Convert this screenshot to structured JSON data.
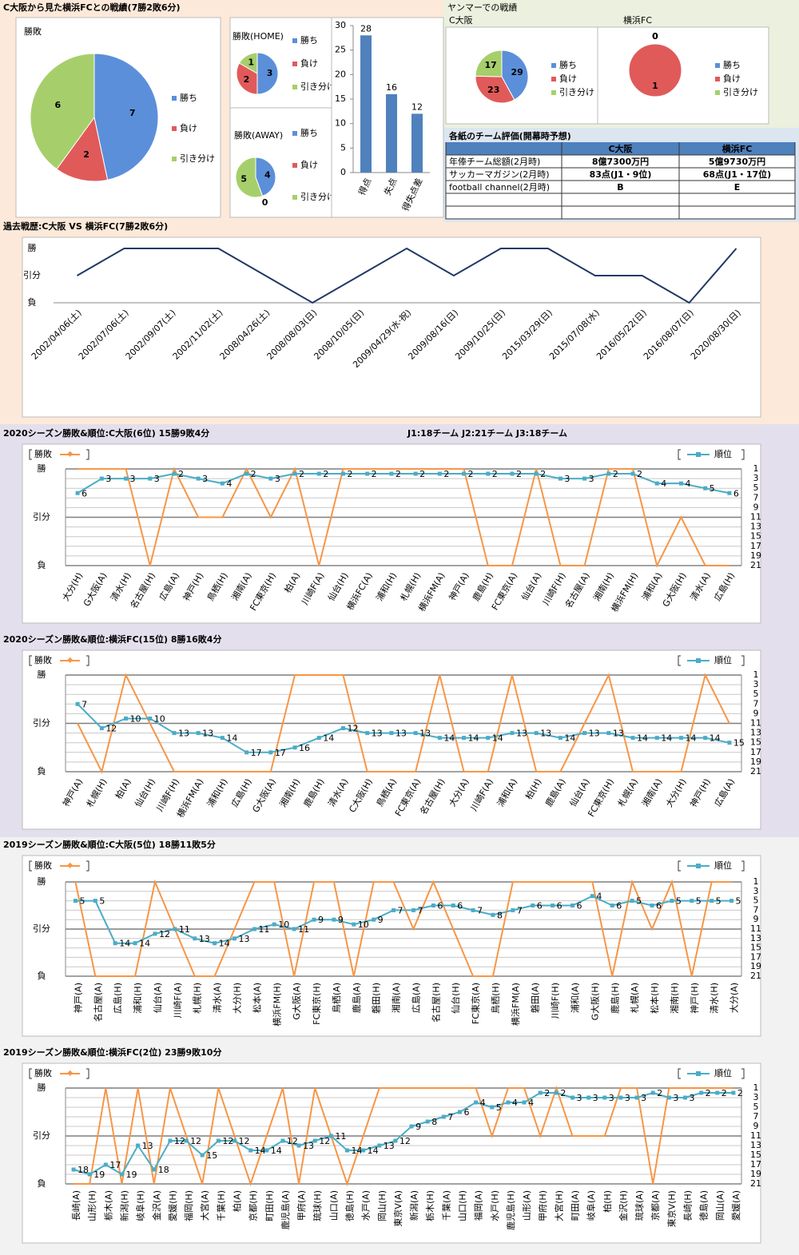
{
  "headings": {
    "overview": "C大阪から見た横浜FCとの戦績(7勝2敗6分)",
    "yanmar": "ヤンマーでの戦績"
  },
  "table": {
    "title": "各紙のチーム評価(開幕時予想)",
    "columns": [
      "C大阪",
      "横浜FC"
    ],
    "rows": [
      {
        "label": "年俸チーム総額(2月時)",
        "values": [
          "8億7300万円",
          "5億9730万円"
        ]
      },
      {
        "label": "サッカーマガジン(2月時)",
        "values": [
          "83点(J1・9位)",
          "68点(J1・17位)"
        ]
      },
      {
        "label": "football channel(2月時)",
        "values": [
          "B",
          "E"
        ]
      }
    ]
  },
  "chart_data": [
    {
      "type": "pie",
      "title": "勝敗",
      "categories": [
        "勝ち",
        "負け",
        "引き分け"
      ],
      "values": [
        7,
        2,
        6
      ],
      "colors": [
        "#5b8fd9",
        "#e05a5a",
        "#a6cf6b"
      ]
    },
    {
      "type": "pie",
      "title": "勝敗(HOME)",
      "categories": [
        "勝ち",
        "負け",
        "引き分け"
      ],
      "values": [
        3,
        2,
        1
      ],
      "colors": [
        "#5b8fd9",
        "#e05a5a",
        "#a6cf6b"
      ]
    },
    {
      "type": "pie",
      "title": "勝敗(AWAY)",
      "categories": [
        "勝ち",
        "負け",
        "引き分け"
      ],
      "values": [
        4,
        0,
        5
      ],
      "colors": [
        "#5b8fd9",
        "#e05a5a",
        "#a6cf6b"
      ]
    },
    {
      "type": "bar",
      "categories": [
        "得点",
        "失点",
        "得失点差"
      ],
      "values": [
        28,
        16,
        12
      ],
      "color": "#4f81bd",
      "ylim": [
        0,
        30
      ],
      "yticks": [
        0,
        5,
        10,
        15,
        20,
        25,
        30
      ]
    },
    {
      "type": "pie",
      "title": "C大阪",
      "categories": [
        "勝ち",
        "負け",
        "引き分け"
      ],
      "values": [
        29,
        23,
        17
      ],
      "colors": [
        "#5b8fd9",
        "#e05a5a",
        "#a6cf6b"
      ]
    },
    {
      "type": "pie",
      "title": "横浜FC",
      "categories": [
        "勝ち",
        "負け",
        "引き分け"
      ],
      "values": [
        0,
        1,
        0
      ],
      "colors": [
        "#5b8fd9",
        "#e05a5a",
        "#a6cf6b"
      ]
    },
    {
      "type": "line",
      "title": "過去戦歴:C大阪 VS 横浜FC(7勝2敗6分)",
      "categories": [
        "2002/04/06(土)",
        "2002/07/06(土)",
        "2002/09/07(土)",
        "2002/11/02(土)",
        "2008/04/26(土)",
        "2008/08/03(日)",
        "2008/10/05(日)",
        "2009/04/29(水·祝)",
        "2009/08/16(日)",
        "2009/10/25(日)",
        "2015/03/29(日)",
        "2015/07/08(水)",
        "2016/05/22(日)",
        "2016/08/07(日)",
        "2020/08/30(日)"
      ],
      "values": [
        0,
        1,
        1,
        1,
        0,
        -1,
        0,
        1,
        0,
        1,
        1,
        0,
        0,
        -1,
        1
      ],
      "color": "#1f3864",
      "ylim": [
        -1,
        1
      ],
      "yticks": [
        {
          "value": 1,
          "label": "勝"
        },
        {
          "value": 0,
          "label": "引分"
        },
        {
          "value": -1,
          "label": "負"
        }
      ],
      "grid": false
    },
    {
      "type": "line",
      "title": "2020シーズン勝敗&順位:C大阪(6位) 15勝9敗4分",
      "annotation": "J1:18チーム J2:21チーム J3:18チーム",
      "categories": [
        "大分(H)",
        "G大阪(A)",
        "清水(H)",
        "名古屋(H)",
        "広島(A)",
        "神戸(H)",
        "鳥栖(H)",
        "湘南(A)",
        "FC東京(H)",
        "柏(A)",
        "川崎F(A)",
        "仙台(H)",
        "横浜FC(A)",
        "浦和(H)",
        "札幌(H)",
        "横浜FM(A)",
        "神戸(A)",
        "鹿島(H)",
        "FC東京(A)",
        "仙台(A)",
        "川崎F(H)",
        "名古屋(A)",
        "湘南(H)",
        "横浜FM(H)",
        "浦和(A)",
        "G大阪(H)",
        "清水(A)",
        "広島(H)"
      ],
      "series": [
        {
          "name": "勝敗",
          "color": "#f79646",
          "values": [
            1,
            1,
            1,
            -1,
            1,
            0,
            0,
            1,
            0,
            1,
            -1,
            1,
            1,
            1,
            1,
            1,
            1,
            -1,
            -1,
            1,
            -1,
            -1,
            1,
            1,
            -1,
            0,
            -1,
            -1
          ]
        },
        {
          "name": "順位",
          "color": "#4bacc6",
          "axis": "y2",
          "values": [
            6,
            3,
            3,
            3,
            2,
            3,
            4,
            2,
            3,
            2,
            2,
            2,
            2,
            2,
            2,
            2,
            2,
            2,
            2,
            2,
            3,
            3,
            2,
            2,
            4,
            4,
            5,
            6
          ]
        }
      ],
      "ylim": [
        -1,
        1
      ],
      "yticks": [
        {
          "value": 1,
          "label": "勝"
        },
        {
          "value": 0,
          "label": "引分"
        },
        {
          "value": -1,
          "label": "負"
        }
      ],
      "y2lim": [
        21,
        1
      ],
      "y2ticks": [
        1,
        3,
        5,
        7,
        9,
        11,
        13,
        15,
        17,
        19,
        21
      ],
      "grid": true
    },
    {
      "type": "line",
      "title": "2020シーズン勝敗&順位:横浜FC(15位) 8勝16敗4分",
      "categories": [
        "神戸(A)",
        "札幌(H)",
        "柏(A)",
        "仙台(H)",
        "川崎F(H)",
        "横浜FM(A)",
        "浦和(H)",
        "広島(H)",
        "G大阪(A)",
        "湘南(H)",
        "鹿島(H)",
        "清水(A)",
        "C大阪(H)",
        "鳥栖(A)",
        "FC東京(A)",
        "名古屋(H)",
        "大分(A)",
        "川崎F(A)",
        "浦和(A)",
        "柏(H)",
        "鹿島(A)",
        "仙台(A)",
        "FC東京(H)",
        "札幌(A)",
        "湘南(A)",
        "大分(H)",
        "神戸(H)",
        "広島(A)"
      ],
      "series": [
        {
          "name": "勝敗",
          "color": "#f79646",
          "values": [
            0,
            -1,
            1,
            0,
            -1,
            -1,
            -1,
            -1,
            -1,
            1,
            1,
            1,
            -1,
            -1,
            -1,
            1,
            -1,
            -1,
            1,
            -1,
            -1,
            0,
            1,
            -1,
            -1,
            -1,
            1,
            0
          ]
        },
        {
          "name": "順位",
          "color": "#4bacc6",
          "axis": "y2",
          "values": [
            7,
            12,
            10,
            10,
            13,
            13,
            14,
            17,
            17,
            16,
            14,
            12,
            13,
            13,
            13,
            14,
            14,
            14,
            13,
            13,
            14,
            13,
            13,
            14,
            14,
            14,
            14,
            15
          ]
        }
      ],
      "ylim": [
        -1,
        1
      ],
      "yticks": [
        {
          "value": 1,
          "label": "勝"
        },
        {
          "value": 0,
          "label": "引分"
        },
        {
          "value": -1,
          "label": "負"
        }
      ],
      "y2lim": [
        21,
        1
      ],
      "y2ticks": [
        1,
        3,
        5,
        7,
        9,
        11,
        13,
        15,
        17,
        19,
        21
      ],
      "grid": true
    },
    {
      "type": "line",
      "title": "2019シーズン勝敗&順位:C大阪(5位) 18勝11敗5分",
      "categories": [
        "神戸(A)",
        "名古屋(A)",
        "広島(H)",
        "浦和(H)",
        "仙台(A)",
        "川崎F(A)",
        "札幌(H)",
        "清水(A)",
        "大分(H)",
        "松本(A)",
        "横浜FM(H)",
        "G大阪(A)",
        "FC東京(H)",
        "鳥栖(A)",
        "鹿島(A)",
        "磐田(H)",
        "湘南(A)",
        "広島(A)",
        "名古屋(H)",
        "仙台(H)",
        "FC東京(A)",
        "鳥栖(H)",
        "横浜FM(A)",
        "磐田(A)",
        "川崎F(H)",
        "浦和(A)",
        "G大阪(H)",
        "鹿島(H)",
        "札幌(A)",
        "松本(H)",
        "湘南(H)",
        "神戸(H)",
        "清水(H)",
        "大分(A)"
      ],
      "series": [
        {
          "name": "勝敗",
          "color": "#f79646",
          "values": [
            1,
            -1,
            -1,
            -1,
            1,
            0,
            -1,
            -1,
            0,
            1,
            1,
            -1,
            1,
            1,
            -1,
            1,
            1,
            0,
            1,
            0,
            -1,
            -1,
            1,
            1,
            1,
            1,
            1,
            -1,
            1,
            0,
            1,
            -1,
            1,
            1
          ]
        },
        {
          "name": "順位",
          "color": "#4bacc6",
          "axis": "y2",
          "values": [
            5,
            5,
            14,
            14,
            12,
            11,
            13,
            14,
            13,
            11,
            10,
            11,
            9,
            9,
            10,
            9,
            7,
            7,
            6,
            6,
            7,
            8,
            7,
            6,
            6,
            6,
            4,
            6,
            5,
            6,
            5,
            5,
            5,
            5
          ]
        }
      ],
      "ylim": [
        -1,
        1
      ],
      "yticks": [
        {
          "value": 1,
          "label": "勝"
        },
        {
          "value": 0,
          "label": "引分"
        },
        {
          "value": -1,
          "label": "負"
        }
      ],
      "y2lim": [
        21,
        1
      ],
      "y2ticks": [
        1,
        3,
        5,
        7,
        9,
        11,
        13,
        15,
        17,
        19,
        21
      ],
      "grid": true
    },
    {
      "type": "line",
      "title": "2019シーズン勝敗&順位:横浜FC(2位) 23勝9敗10分",
      "categories": [
        "長崎(A)",
        "山形(H)",
        "栃木(A)",
        "新潟(H)",
        "岐阜(H)",
        "金沢(A)",
        "愛媛(H)",
        "福岡(H)",
        "大宮(A)",
        "千葉(H)",
        "柏(A)",
        "京都(H)",
        "町田(H)",
        "鹿児島(A)",
        "甲府(A)",
        "琉球(H)",
        "山口(A)",
        "徳島(H)",
        "水戸(A)",
        "岡山(H)",
        "東京V(A)",
        "新潟(A)",
        "栃木(H)",
        "千葉(A)",
        "山口(H)",
        "福岡(A)",
        "水戸(H)",
        "鹿児島(H)",
        "山形(A)",
        "甲府(H)",
        "大宮(H)",
        "町田(A)",
        "岐阜(A)",
        "柏(H)",
        "金沢(H)",
        "琉球(A)",
        "京都(A)",
        "東京V(H)",
        "長崎(H)",
        "徳島(A)",
        "岡山(A)",
        "愛媛(A)"
      ],
      "series": [
        {
          "name": "勝敗",
          "color": "#f79646",
          "values": [
            -1,
            -1,
            1,
            -1,
            1,
            -1,
            1,
            0,
            -1,
            1,
            0,
            -1,
            0,
            1,
            -1,
            1,
            0,
            -1,
            0,
            1,
            1,
            1,
            1,
            1,
            1,
            1,
            0,
            1,
            1,
            0,
            1,
            0,
            0,
            0,
            1,
            1,
            -1,
            1,
            1,
            1,
            1,
            1
          ]
        },
        {
          "name": "順位",
          "color": "#4bacc6",
          "axis": "y2",
          "values": [
            18,
            19,
            17,
            19,
            13,
            18,
            12,
            12,
            15,
            12,
            12,
            14,
            14,
            12,
            13,
            12,
            11,
            14,
            14,
            13,
            12,
            9,
            8,
            7,
            6,
            4,
            5,
            4,
            4,
            2,
            2,
            3,
            3,
            3,
            3,
            3,
            2,
            3,
            3,
            2,
            2,
            2
          ]
        }
      ],
      "ylim": [
        -1,
        1
      ],
      "yticks": [
        {
          "value": 1,
          "label": "勝"
        },
        {
          "value": 0,
          "label": "引分"
        },
        {
          "value": -1,
          "label": "負"
        }
      ],
      "y2lim": [
        21,
        1
      ],
      "y2ticks": [
        1,
        3,
        5,
        7,
        9,
        11,
        13,
        15,
        17,
        19,
        21
      ],
      "grid": true
    }
  ]
}
